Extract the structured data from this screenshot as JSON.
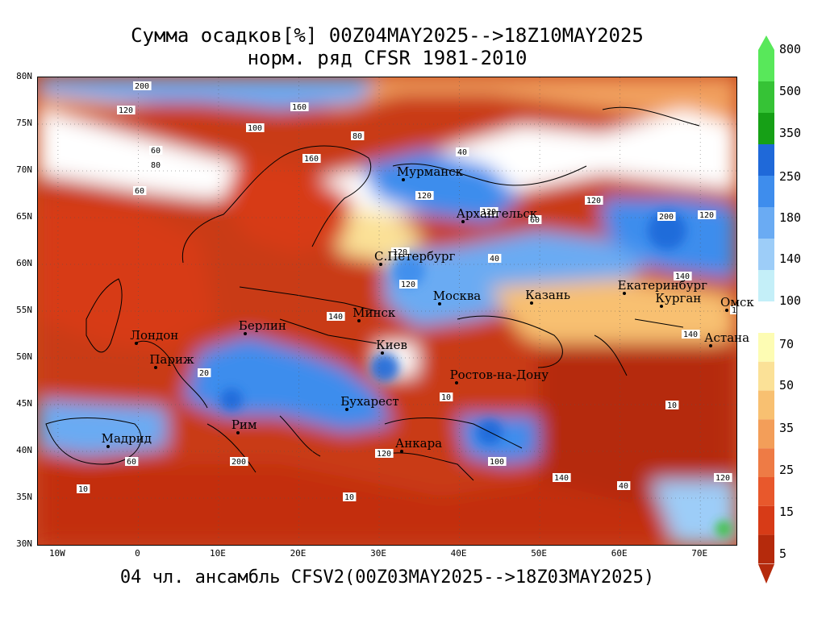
{
  "title_line1": "Сумма осадков[%] 00Z04MAY2025-->18Z10MAY2025",
  "title_line2": "норм. ряд CFSR 1981-2010",
  "footer": "04 чл. ансамбль CFSV2(00Z03MAY2025-->18Z03MAY2025)",
  "lat_labels": [
    "80N",
    "75N",
    "70N",
    "65N",
    "60N",
    "55N",
    "50N",
    "45N",
    "40N",
    "35N",
    "30N"
  ],
  "lon_labels": [
    "10W",
    "0",
    "10E",
    "20E",
    "30E",
    "40E",
    "50E",
    "60E",
    "70E"
  ],
  "cities": [
    {
      "name": "Мурманск",
      "lon": 33.1,
      "lat": 69.0
    },
    {
      "name": "Архангельск",
      "lon": 40.5,
      "lat": 64.5
    },
    {
      "name": "С.Петербург",
      "lon": 30.3,
      "lat": 59.9
    },
    {
      "name": "Москва",
      "lon": 37.6,
      "lat": 55.7
    },
    {
      "name": "Казань",
      "lon": 49.1,
      "lat": 55.8
    },
    {
      "name": "Екатеринбург",
      "lon": 60.6,
      "lat": 56.8
    },
    {
      "name": "Курган",
      "lon": 65.3,
      "lat": 55.4
    },
    {
      "name": "Омск",
      "lon": 73.4,
      "lat": 55.0
    },
    {
      "name": "Астана",
      "lon": 71.4,
      "lat": 51.2
    },
    {
      "name": "Минск",
      "lon": 27.6,
      "lat": 53.9
    },
    {
      "name": "Киев",
      "lon": 30.5,
      "lat": 50.4
    },
    {
      "name": "Берлин",
      "lon": 13.4,
      "lat": 52.5
    },
    {
      "name": "Лондон",
      "lon": -0.1,
      "lat": 51.5
    },
    {
      "name": "Париж",
      "lon": 2.3,
      "lat": 48.9
    },
    {
      "name": "Ростов-на-Дону",
      "lon": 39.7,
      "lat": 47.2
    },
    {
      "name": "Бухарест",
      "lon": 26.1,
      "lat": 44.4
    },
    {
      "name": "Рим",
      "lon": 12.5,
      "lat": 41.9
    },
    {
      "name": "Мадрид",
      "lon": -3.7,
      "lat": 40.4
    },
    {
      "name": "Анкара",
      "lon": 32.9,
      "lat": 39.9
    }
  ],
  "colorbar": {
    "labels": [
      "800",
      "500",
      "350",
      "250",
      "180",
      "140",
      "100",
      "70",
      "50",
      "35",
      "25",
      "15",
      "5"
    ],
    "colors_wet": [
      "#58e85a",
      "#36c336",
      "#16a016",
      "#1f69d9",
      "#3e8ded",
      "#6aabf3",
      "#9dcdf8",
      "#c4eff8"
    ],
    "colors_dry": [
      "#fdfcb3",
      "#fbe197",
      "#f8c071",
      "#f39e59",
      "#ee7b45",
      "#e8582c",
      "#d73b17",
      "#b52a0c"
    ]
  },
  "contour_labels": [
    "200",
    "120",
    "160",
    "100",
    "40",
    "80",
    "60",
    "140",
    "20",
    "10"
  ]
}
